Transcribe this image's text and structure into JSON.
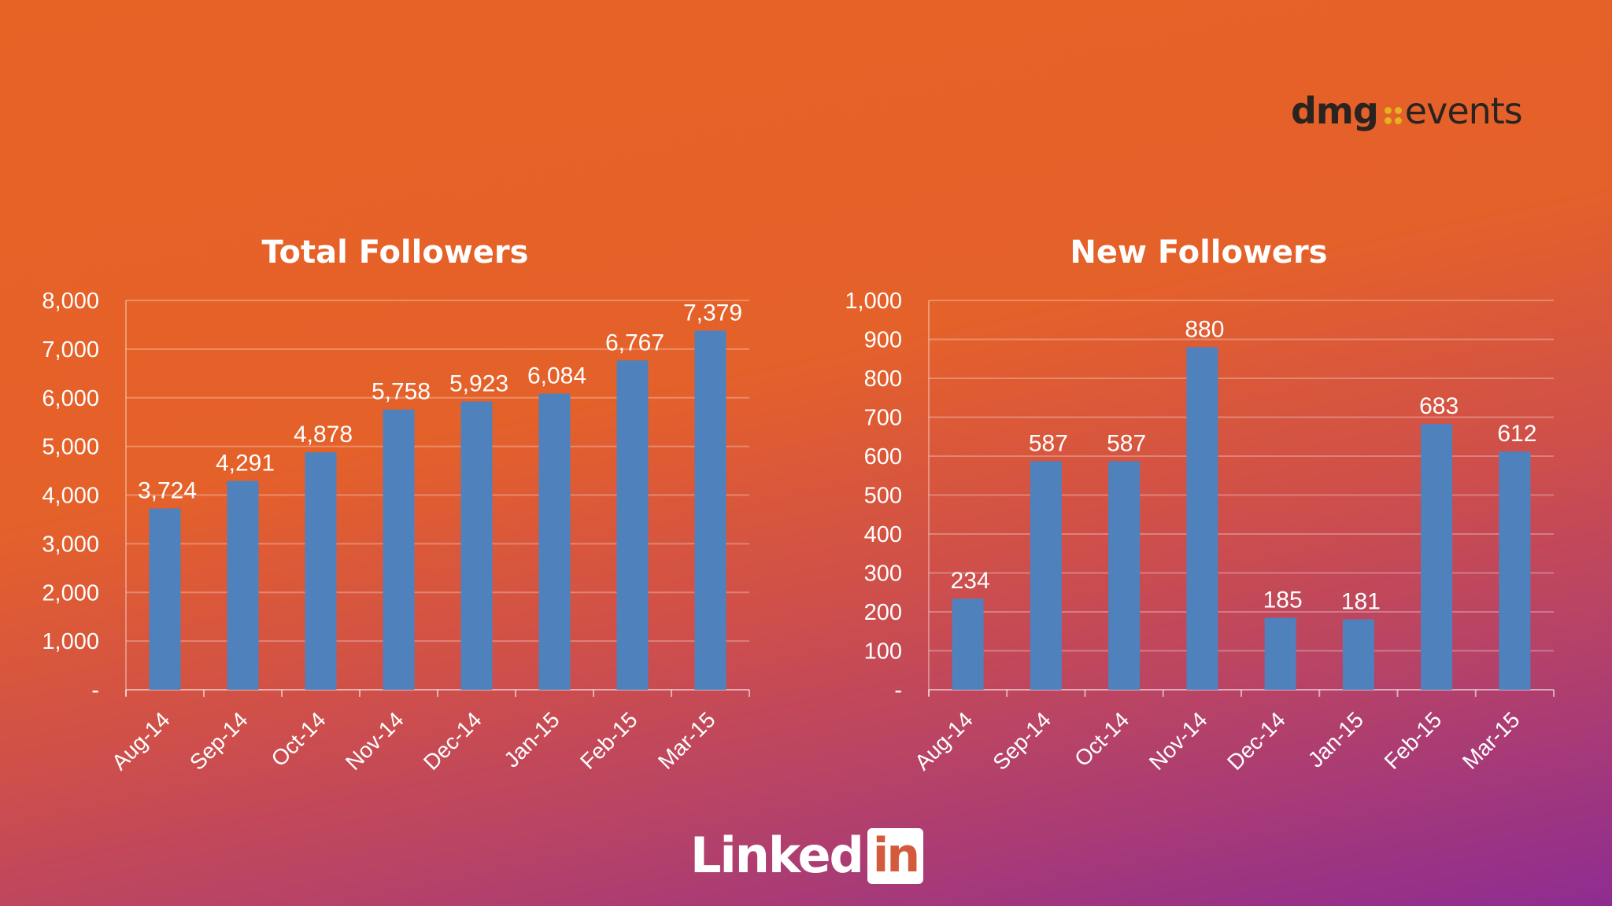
{
  "brand": {
    "dmg_word": "dmg",
    "events_word": "events",
    "dmg_dots_color": "#e3b21e"
  },
  "footer": {
    "linkedin_word": "Linked",
    "linkedin_box": "in"
  },
  "chart_data": [
    {
      "type": "bar",
      "title": "Total Followers",
      "categories": [
        "Aug-14",
        "Sep-14",
        "Oct-14",
        "Nov-14",
        "Dec-14",
        "Jan-15",
        "Feb-15",
        "Mar-15"
      ],
      "values": [
        3724,
        4291,
        4878,
        5758,
        5923,
        6084,
        6767,
        7379
      ],
      "value_labels": [
        "3,724",
        "4,291",
        "4,878",
        "5,758",
        "5,923",
        "6,084",
        "6,767",
        "7,379"
      ],
      "ylim": [
        0,
        8000
      ],
      "yticks": [
        0,
        1000,
        2000,
        3000,
        4000,
        5000,
        6000,
        7000,
        8000
      ],
      "ytick_labels": [
        "-",
        "1,000",
        "2,000",
        "3,000",
        "4,000",
        "5,000",
        "6,000",
        "7,000",
        "8,000"
      ],
      "grid": true,
      "bar_color": "#4f81bd"
    },
    {
      "type": "bar",
      "title": "New Followers",
      "categories": [
        "Aug-14",
        "Sep-14",
        "Oct-14",
        "Nov-14",
        "Dec-14",
        "Jan-15",
        "Feb-15",
        "Mar-15"
      ],
      "values": [
        234,
        587,
        587,
        880,
        185,
        181,
        683,
        612
      ],
      "value_labels": [
        "234",
        "587",
        "587",
        "880",
        "185",
        "181",
        "683",
        "612"
      ],
      "ylim": [
        0,
        1000
      ],
      "yticks": [
        0,
        100,
        200,
        300,
        400,
        500,
        600,
        700,
        800,
        900,
        1000
      ],
      "ytick_labels": [
        "-",
        "100",
        "200",
        "300",
        "400",
        "500",
        "600",
        "700",
        "800",
        "900",
        "1,000"
      ],
      "grid": true,
      "bar_color": "#4f81bd"
    }
  ]
}
